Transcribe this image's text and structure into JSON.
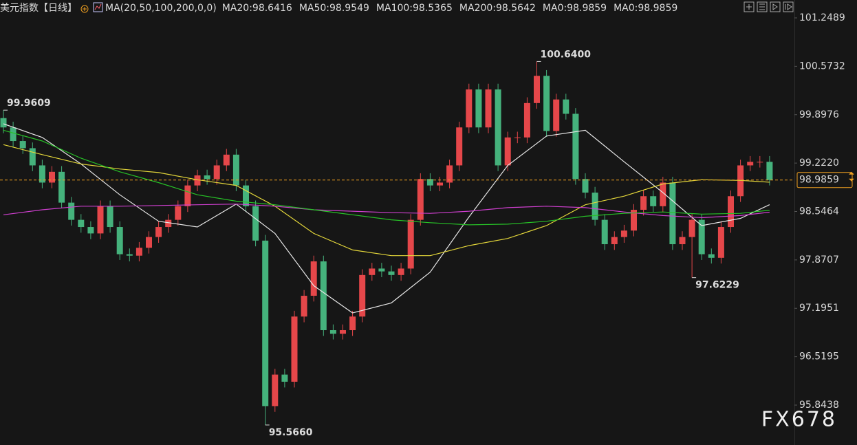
{
  "chart_data": {
    "type": "candlestick",
    "title": "美元指数",
    "period": "【日线】",
    "indicator": "MA(20,50,100,200,0,0)",
    "up_color": "#e5474a",
    "down_color": "#45b27c",
    "open": [
      99.85,
      99.72,
      99.53,
      99.43,
      99.19,
      98.95,
      99.1,
      98.67,
      98.43,
      98.33,
      98.24,
      98.62,
      98.33,
      97.95,
      97.93,
      98.04,
      98.19,
      98.33,
      98.43,
      98.62,
      98.91,
      99.05,
      99.0,
      99.19,
      99.34,
      98.91,
      98.62,
      98.14,
      95.83,
      96.27,
      96.17,
      97.08,
      97.37,
      97.85,
      96.89,
      96.84,
      96.89,
      97.08,
      97.66,
      97.75,
      97.71,
      97.66,
      97.75,
      98.43,
      99.0,
      98.91,
      98.95,
      99.19,
      99.72,
      100.25,
      99.72,
      100.25,
      99.19,
      99.58,
      99.58,
      100.06,
      100.44,
      99.67,
      100.11,
      99.91,
      99.0,
      98.81,
      98.43,
      98.09,
      98.19,
      98.28,
      98.57,
      98.76,
      98.62,
      98.95,
      98.09,
      98.19,
      98.43,
      97.95,
      97.9,
      98.33,
      98.76,
      99.19,
      99.24,
      99.24
    ],
    "high": [
      99.9609,
      99.8,
      99.61,
      99.51,
      99.27,
      99.18,
      99.18,
      98.75,
      98.51,
      98.41,
      98.7,
      98.7,
      98.41,
      98.03,
      98.12,
      98.27,
      98.41,
      98.51,
      98.7,
      98.99,
      99.13,
      99.13,
      99.27,
      99.42,
      99.42,
      98.99,
      98.7,
      98.22,
      96.35,
      96.35,
      97.16,
      97.45,
      97.93,
      97.93,
      96.97,
      96.97,
      97.16,
      97.74,
      97.83,
      97.83,
      97.79,
      97.83,
      98.51,
      99.08,
      99.08,
      99.03,
      99.27,
      99.8,
      100.33,
      100.33,
      100.33,
      100.33,
      99.66,
      99.66,
      100.14,
      100.64,
      100.52,
      100.19,
      100.19,
      99.99,
      99.08,
      98.89,
      98.51,
      98.27,
      98.36,
      98.65,
      98.84,
      98.84,
      99.03,
      99.03,
      98.27,
      98.51,
      98.51,
      98.03,
      98.41,
      98.84,
      99.27,
      99.32,
      99.32,
      99.32
    ],
    "low": [
      99.64,
      99.45,
      99.35,
      99.11,
      98.87,
      98.87,
      98.59,
      98.35,
      98.25,
      98.16,
      98.16,
      98.25,
      97.87,
      97.85,
      97.85,
      97.96,
      98.11,
      98.25,
      98.35,
      98.54,
      98.83,
      98.92,
      98.92,
      99.11,
      98.83,
      98.54,
      98.06,
      95.566,
      95.75,
      96.09,
      96.09,
      97.0,
      97.29,
      96.81,
      96.76,
      96.76,
      96.81,
      97.0,
      97.58,
      97.63,
      97.58,
      97.58,
      97.67,
      98.35,
      98.83,
      98.83,
      98.87,
      99.11,
      99.64,
      99.64,
      99.64,
      99.11,
      99.11,
      99.5,
      99.5,
      99.98,
      99.59,
      99.59,
      99.83,
      98.92,
      98.73,
      98.35,
      98.01,
      98.01,
      98.11,
      98.2,
      98.49,
      98.54,
      98.54,
      98.01,
      98.01,
      97.6229,
      97.87,
      97.82,
      97.82,
      98.25,
      98.68,
      99.11,
      99.16,
      98.91
    ],
    "close": [
      99.72,
      99.53,
      99.43,
      99.19,
      98.95,
      99.1,
      98.67,
      98.43,
      98.33,
      98.24,
      98.62,
      98.33,
      97.95,
      97.93,
      98.04,
      98.19,
      98.33,
      98.43,
      98.62,
      98.91,
      99.05,
      99.0,
      99.19,
      99.34,
      98.91,
      98.62,
      98.14,
      95.83,
      96.27,
      96.17,
      97.08,
      97.37,
      97.85,
      96.89,
      96.84,
      96.89,
      97.08,
      97.66,
      97.75,
      97.71,
      97.66,
      97.75,
      98.43,
      99.0,
      98.91,
      98.95,
      99.19,
      99.72,
      100.25,
      99.72,
      100.25,
      99.19,
      99.58,
      99.58,
      100.06,
      100.44,
      99.67,
      100.11,
      99.91,
      99.0,
      98.81,
      98.43,
      98.09,
      98.19,
      98.28,
      98.57,
      98.76,
      98.62,
      98.95,
      98.09,
      98.19,
      98.43,
      97.95,
      97.9,
      98.33,
      98.76,
      99.19,
      99.24,
      99.24,
      98.9859
    ],
    "high_labels": [
      "99.9609",
      null,
      null,
      null,
      null,
      null,
      null,
      null,
      null,
      null,
      null,
      null,
      null,
      null,
      null,
      null,
      null,
      null,
      null,
      null,
      null,
      null,
      null,
      null,
      null,
      null,
      null,
      null,
      null,
      null,
      null,
      null,
      null,
      null,
      null,
      null,
      null,
      null,
      null,
      null,
      null,
      null,
      null,
      null,
      null,
      null,
      null,
      null,
      null,
      null,
      null,
      null,
      null,
      null,
      null,
      "100.6400",
      null,
      null,
      null,
      null,
      null,
      null,
      null,
      null,
      null,
      null,
      null,
      null,
      null,
      null,
      null,
      null,
      null,
      null,
      null,
      null,
      null,
      null,
      null,
      null
    ],
    "low_labels": [
      null,
      null,
      null,
      null,
      null,
      null,
      null,
      null,
      null,
      null,
      null,
      null,
      null,
      null,
      null,
      null,
      null,
      null,
      null,
      null,
      null,
      null,
      null,
      null,
      null,
      null,
      null,
      "95.5660",
      null,
      null,
      null,
      null,
      null,
      null,
      null,
      null,
      null,
      null,
      null,
      null,
      null,
      null,
      null,
      null,
      null,
      null,
      null,
      null,
      null,
      null,
      null,
      null,
      null,
      null,
      null,
      null,
      null,
      null,
      null,
      null,
      null,
      null,
      null,
      null,
      null,
      null,
      null,
      null,
      null,
      null,
      null,
      "97.6229",
      null,
      null,
      null,
      null,
      null,
      null,
      null,
      null
    ],
    "series": [
      {
        "name": "MA20:98.6416",
        "color": "#e6e6e6",
        "x": [
          0,
          4,
          8,
          12,
          16,
          20,
          24,
          28,
          32,
          36,
          40,
          44,
          48,
          52,
          56,
          60,
          64,
          68,
          72,
          76,
          79
        ],
        "values": [
          99.77,
          99.58,
          99.21,
          98.78,
          98.41,
          98.33,
          98.65,
          98.24,
          97.51,
          97.13,
          97.27,
          97.7,
          98.47,
          99.19,
          99.6,
          99.68,
          99.24,
          98.81,
          98.35,
          98.45,
          98.6416
        ]
      },
      {
        "name": "MA50:98.9549",
        "color": "#e3d63a",
        "x": [
          0,
          4,
          8,
          12,
          16,
          20,
          24,
          28,
          32,
          36,
          40,
          44,
          48,
          52,
          56,
          60,
          64,
          68,
          72,
          76,
          79
        ],
        "values": [
          99.48,
          99.34,
          99.21,
          99.14,
          99.09,
          98.99,
          98.91,
          98.62,
          98.24,
          98.01,
          97.93,
          97.93,
          98.07,
          98.17,
          98.35,
          98.64,
          98.76,
          98.93,
          98.99,
          98.98,
          98.9549
        ]
      },
      {
        "name": "MA100:98.5365",
        "color": "#cf3fcf",
        "x": [
          0,
          4,
          8,
          12,
          16,
          20,
          24,
          28,
          32,
          36,
          40,
          44,
          48,
          52,
          56,
          60,
          64,
          68,
          72,
          76,
          79
        ],
        "values": [
          98.5,
          98.57,
          98.62,
          98.62,
          98.63,
          98.64,
          98.65,
          98.62,
          98.57,
          98.55,
          98.53,
          98.52,
          98.55,
          98.6,
          98.62,
          98.6,
          98.54,
          98.49,
          98.46,
          98.49,
          98.5365
        ]
      },
      {
        "name": "MA200:98.5642",
        "color": "#27c227",
        "x": [
          0,
          4,
          8,
          12,
          16,
          20,
          24,
          28,
          32,
          36,
          40,
          44,
          48,
          52,
          56,
          60,
          64,
          68,
          72,
          76,
          79
        ],
        "values": [
          99.68,
          99.53,
          99.29,
          99.1,
          98.95,
          98.78,
          98.69,
          98.64,
          98.57,
          98.5,
          98.43,
          98.39,
          98.36,
          98.37,
          98.41,
          98.48,
          98.52,
          98.54,
          98.51,
          98.52,
          98.5642
        ]
      }
    ],
    "indicator_labels": [
      {
        "text": "MA0:98.9859",
        "color": "#8c8c8c"
      },
      {
        "text": "MA0:98.9859",
        "color": "#e03c3c"
      }
    ],
    "last_price_color": "#f0a020",
    "ylim": [
      95.287,
      101.4985
    ],
    "yticks": [
      101.2489,
      100.5732,
      99.8976,
      {
        "value": 99.222,
        "label": "99.2220"
      },
      98.5464,
      97.8707,
      97.1951,
      96.5195,
      95.8438
    ],
    "watermark": "FX678"
  }
}
